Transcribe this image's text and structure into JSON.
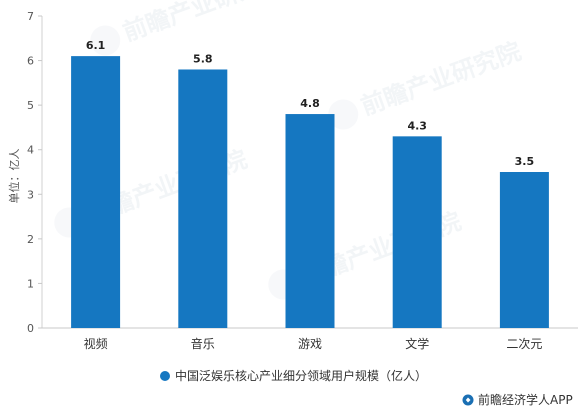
{
  "watermark": {
    "text": "前瞻产业研究院"
  },
  "chart_data": {
    "type": "bar",
    "categories": [
      "视频",
      "音乐",
      "游戏",
      "文学",
      "二次元"
    ],
    "values": [
      6.1,
      5.8,
      4.8,
      4.3,
      3.5
    ],
    "data_labels": [
      "6.1",
      "5.8",
      "4.8",
      "4.3",
      "3.5"
    ],
    "ylabel": "单位：亿人",
    "xlabel": "",
    "ylim": [
      0,
      7
    ],
    "yticks": [
      0,
      1,
      2,
      3,
      4,
      5,
      6,
      7
    ],
    "grid": false,
    "legend": {
      "placement": "bottom-center",
      "entries": [
        {
          "name": "中国泛娱乐核心产业细分领域用户规模（亿人）",
          "color": "#1577C1"
        }
      ]
    },
    "bar_color": "#1577C1"
  },
  "brand": {
    "text": "前瞻经济学人APP",
    "icon": "brand-icon",
    "color": "#1A6FB3"
  }
}
